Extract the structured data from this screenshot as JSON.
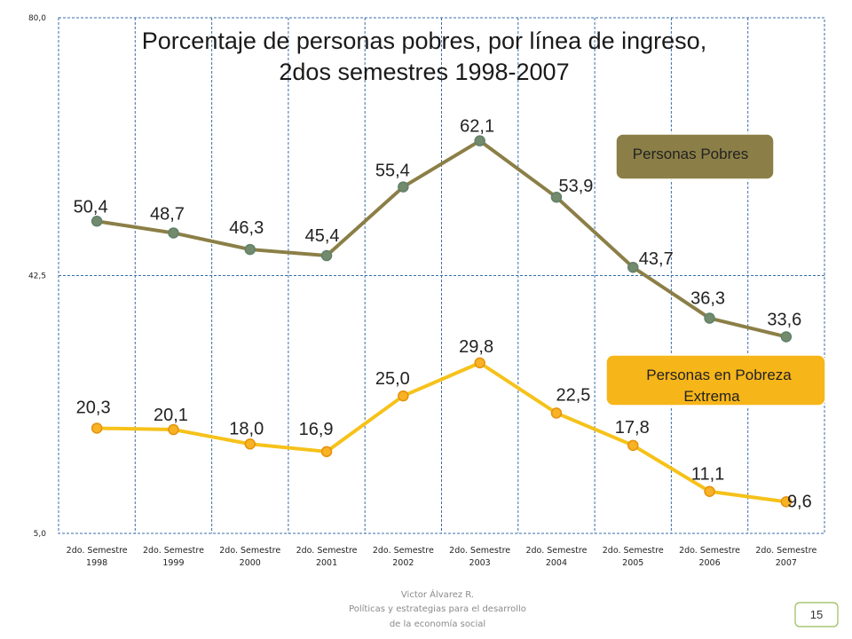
{
  "chart_data": {
    "type": "line",
    "title_lines": [
      "Porcentaje de personas pobres, por línea de ingreso,",
      "2dos semestres 1998-2007"
    ],
    "categories": [
      [
        "2do. Semestre",
        "1998"
      ],
      [
        "2do. Semestre",
        "1999"
      ],
      [
        "2do. Semestre",
        "2000"
      ],
      [
        "2do. Semestre",
        "2001"
      ],
      [
        "2do. Semestre",
        "2002"
      ],
      [
        "2do. Semestre",
        "2003"
      ],
      [
        "2do. Semestre",
        "2004"
      ],
      [
        "2do. Semestre",
        "2005"
      ],
      [
        "2do. Semestre",
        "2006"
      ],
      [
        "2do. Semestre",
        "2007"
      ]
    ],
    "ylim": [
      5.0,
      80.0
    ],
    "yticks": [
      "5,0",
      "42,5",
      "80,0"
    ],
    "grid": true,
    "series": [
      {
        "name": "Personas Pobres",
        "color": "#8b7f47",
        "values": [
          50.4,
          48.7,
          46.3,
          45.4,
          55.4,
          62.1,
          53.9,
          43.7,
          36.3,
          33.6
        ],
        "labels": [
          "50,4",
          "48,7",
          "46,3",
          "45,4",
          "55,4",
          "62,1",
          "53,9",
          "43,7",
          "36,3",
          "33,6"
        ]
      },
      {
        "name": "Personas en Pobreza Extrema",
        "name_lines": [
          "Personas en Pobreza",
          "Extrema"
        ],
        "color": "#f6c21a",
        "values": [
          20.3,
          20.1,
          18.0,
          16.9,
          25.0,
          29.8,
          22.5,
          17.8,
          11.1,
          9.6
        ],
        "labels": [
          "20,3",
          "20,1",
          "18,0",
          "16,9",
          "25,0",
          "29,8",
          "22,5",
          "17,8",
          "11,1",
          "9,6"
        ]
      }
    ]
  },
  "footer": {
    "author": "Victor Álvarez R.",
    "line2": "Políticas y estrategias para el desarrollo",
    "line3": "de la economía social",
    "page_number": "15"
  },
  "colors": {
    "grid": "#3a6ea8",
    "legend_pobres_fill": "#8b7f47",
    "legend_extrema_fill": "#f6b519",
    "page_badge_border": "#9bbb59"
  }
}
